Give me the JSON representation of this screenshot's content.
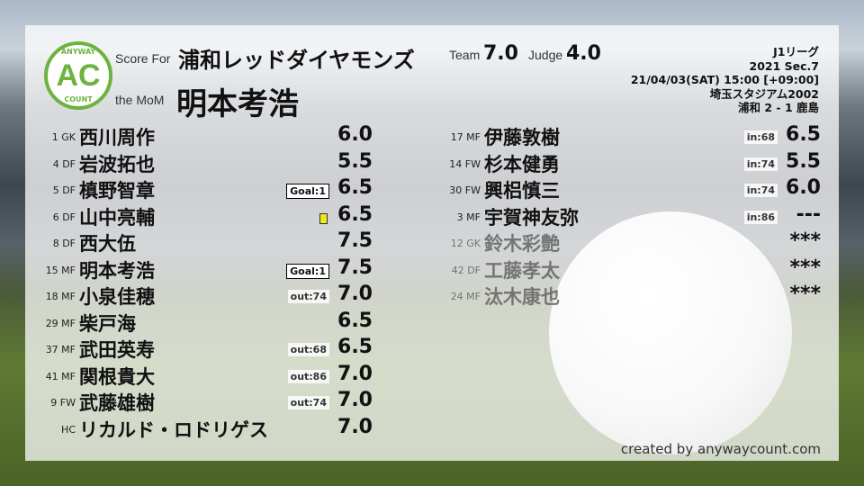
{
  "header": {
    "score_for_label": "Score For",
    "team_name": "浦和レッドダイヤモンズ",
    "mom_label": "the MoM",
    "mom_name": "明本考浩",
    "team_label": "Team",
    "team_score": "7.0",
    "judge_label": "Judge",
    "judge_score": "4.0"
  },
  "logo": {
    "top": "ANYWAY",
    "center": "AC",
    "bottom": "COUNT",
    "color": "#6cb33f"
  },
  "match": {
    "league": "J1リーグ",
    "section": "2021 Sec.7",
    "datetime": "21/04/03(SAT) 15:00 [+09:00]",
    "stadium": "埼玉スタジアム2002",
    "result": "浦和 2 - 1 鹿島"
  },
  "left_players": [
    {
      "num": "1 GK",
      "name": "西川周作",
      "score": "6.0",
      "badge": ""
    },
    {
      "num": "4 DF",
      "name": "岩波拓也",
      "score": "5.5",
      "badge": ""
    },
    {
      "num": "5 DF",
      "name": "槙野智章",
      "score": "6.5",
      "badge": "Goal:1",
      "badge_type": "goal"
    },
    {
      "num": "6 DF",
      "name": "山中亮輔",
      "score": "6.5",
      "badge": "",
      "card": "yellow"
    },
    {
      "num": "8 DF",
      "name": "西大伍",
      "score": "7.5",
      "badge": ""
    },
    {
      "num": "15 MF",
      "name": "明本考浩",
      "score": "7.5",
      "badge": "Goal:1",
      "badge_type": "goal"
    },
    {
      "num": "18 MF",
      "name": "小泉佳穂",
      "score": "7.0",
      "badge": "out:74"
    },
    {
      "num": "29 MF",
      "name": "柴戸海",
      "score": "6.5",
      "badge": ""
    },
    {
      "num": "37 MF",
      "name": "武田英寿",
      "score": "6.5",
      "badge": "out:68"
    },
    {
      "num": "41 MF",
      "name": "関根貴大",
      "score": "7.0",
      "badge": "out:86"
    },
    {
      "num": "9 FW",
      "name": "武藤雄樹",
      "score": "7.0",
      "badge": "out:74"
    },
    {
      "num": "HC",
      "name": "リカルド・ロドリゲス",
      "score": "7.0",
      "badge": ""
    }
  ],
  "right_players": [
    {
      "num": "17 MF",
      "name": "伊藤敦樹",
      "score": "6.5",
      "badge": "in:68"
    },
    {
      "num": "14 FW",
      "name": "杉本健勇",
      "score": "5.5",
      "badge": "in:74"
    },
    {
      "num": "30 FW",
      "name": "興梠慎三",
      "score": "6.0",
      "badge": "in:74"
    },
    {
      "num": "3 MF",
      "name": "宇賀神友弥",
      "score": "---",
      "badge": "in:86"
    },
    {
      "num": "12 GK",
      "name": "鈴木彩艶",
      "score": "***",
      "badge": "",
      "unused": true
    },
    {
      "num": "42 DF",
      "name": "工藤孝太",
      "score": "***",
      "badge": "",
      "unused": true
    },
    {
      "num": "24 MF",
      "name": "汰木康也",
      "score": "***",
      "badge": "",
      "unused": true
    }
  ],
  "footer": {
    "credit": "created by anywaycount.com"
  }
}
